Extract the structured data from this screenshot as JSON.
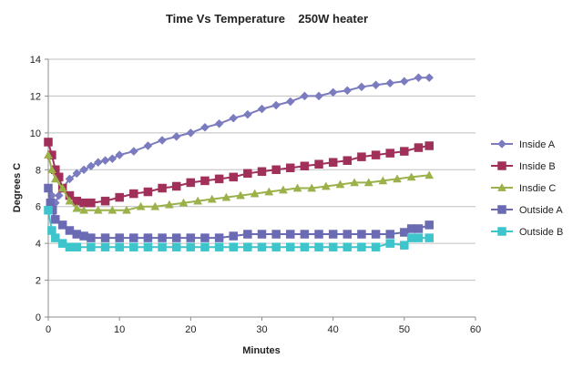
{
  "chart_data": {
    "type": "line",
    "title": "Time Vs Temperature    250W heater",
    "xlabel": "Minutes",
    "ylabel": "Degrees C",
    "xlim": [
      0,
      60
    ],
    "ylim": [
      0,
      14
    ],
    "xticks": [
      0,
      10,
      20,
      30,
      40,
      50,
      60
    ],
    "yticks": [
      0,
      2,
      4,
      6,
      8,
      10,
      12,
      14
    ],
    "grid": "horizontal",
    "legend_position": "right",
    "series": [
      {
        "name": "Inside A",
        "color": "#7b7bbf",
        "marker": "diamond",
        "points": [
          [
            0,
            7.0
          ],
          [
            0.5,
            6.6
          ],
          [
            1,
            6.2
          ],
          [
            1.5,
            6.6
          ],
          [
            2,
            7.0
          ],
          [
            3,
            7.5
          ],
          [
            4,
            7.8
          ],
          [
            5,
            8.0
          ],
          [
            6,
            8.2
          ],
          [
            7,
            8.4
          ],
          [
            8,
            8.5
          ],
          [
            9,
            8.6
          ],
          [
            10,
            8.8
          ],
          [
            12,
            9.0
          ],
          [
            14,
            9.3
          ],
          [
            16,
            9.6
          ],
          [
            18,
            9.8
          ],
          [
            20,
            10.0
          ],
          [
            22,
            10.3
          ],
          [
            24,
            10.5
          ],
          [
            26,
            10.8
          ],
          [
            28,
            11.0
          ],
          [
            30,
            11.3
          ],
          [
            32,
            11.5
          ],
          [
            34,
            11.7
          ],
          [
            36,
            12.0
          ],
          [
            38,
            12.0
          ],
          [
            40,
            12.2
          ],
          [
            42,
            12.3
          ],
          [
            44,
            12.5
          ],
          [
            46,
            12.6
          ],
          [
            48,
            12.7
          ],
          [
            50,
            12.8
          ],
          [
            52,
            13.0
          ],
          [
            53.5,
            13.0
          ]
        ]
      },
      {
        "name": "Inside B",
        "color": "#a0305a",
        "marker": "square",
        "points": [
          [
            0,
            9.5
          ],
          [
            0.5,
            8.8
          ],
          [
            1,
            8.0
          ],
          [
            1.5,
            7.6
          ],
          [
            2,
            7.0
          ],
          [
            3,
            6.6
          ],
          [
            4,
            6.3
          ],
          [
            5,
            6.2
          ],
          [
            6,
            6.2
          ],
          [
            8,
            6.3
          ],
          [
            10,
            6.5
          ],
          [
            12,
            6.7
          ],
          [
            14,
            6.8
          ],
          [
            16,
            7.0
          ],
          [
            18,
            7.1
          ],
          [
            20,
            7.3
          ],
          [
            22,
            7.4
          ],
          [
            24,
            7.5
          ],
          [
            26,
            7.6
          ],
          [
            28,
            7.8
          ],
          [
            30,
            7.9
          ],
          [
            32,
            8.0
          ],
          [
            34,
            8.1
          ],
          [
            36,
            8.2
          ],
          [
            38,
            8.3
          ],
          [
            40,
            8.4
          ],
          [
            42,
            8.5
          ],
          [
            44,
            8.7
          ],
          [
            46,
            8.8
          ],
          [
            48,
            8.9
          ],
          [
            50,
            9.0
          ],
          [
            52,
            9.2
          ],
          [
            53.5,
            9.3
          ]
        ]
      },
      {
        "name": "Insdie C",
        "color": "#9bb14a",
        "marker": "triangle",
        "points": [
          [
            0,
            8.8
          ],
          [
            0.5,
            8.0
          ],
          [
            1,
            7.5
          ],
          [
            2,
            7.0
          ],
          [
            3,
            6.3
          ],
          [
            4,
            5.9
          ],
          [
            5,
            5.8
          ],
          [
            7,
            5.8
          ],
          [
            9,
            5.8
          ],
          [
            11,
            5.8
          ],
          [
            13,
            6.0
          ],
          [
            15,
            6.0
          ],
          [
            17,
            6.1
          ],
          [
            19,
            6.2
          ],
          [
            21,
            6.3
          ],
          [
            23,
            6.4
          ],
          [
            25,
            6.5
          ],
          [
            27,
            6.6
          ],
          [
            29,
            6.7
          ],
          [
            31,
            6.8
          ],
          [
            33,
            6.9
          ],
          [
            35,
            7.0
          ],
          [
            37,
            7.0
          ],
          [
            39,
            7.1
          ],
          [
            41,
            7.2
          ],
          [
            43,
            7.3
          ],
          [
            45,
            7.3
          ],
          [
            47,
            7.4
          ],
          [
            49,
            7.5
          ],
          [
            51,
            7.6
          ],
          [
            53.5,
            7.7
          ]
        ]
      },
      {
        "name": "Outside A",
        "color": "#6b6bb4",
        "marker": "square",
        "points": [
          [
            0,
            7.0
          ],
          [
            0.3,
            6.2
          ],
          [
            0.6,
            5.8
          ],
          [
            1,
            5.3
          ],
          [
            2,
            5.0
          ],
          [
            3,
            4.7
          ],
          [
            4,
            4.5
          ],
          [
            5,
            4.4
          ],
          [
            6,
            4.3
          ],
          [
            8,
            4.3
          ],
          [
            10,
            4.3
          ],
          [
            12,
            4.3
          ],
          [
            14,
            4.3
          ],
          [
            16,
            4.3
          ],
          [
            18,
            4.3
          ],
          [
            20,
            4.3
          ],
          [
            22,
            4.3
          ],
          [
            24,
            4.3
          ],
          [
            26,
            4.4
          ],
          [
            28,
            4.5
          ],
          [
            30,
            4.5
          ],
          [
            32,
            4.5
          ],
          [
            34,
            4.5
          ],
          [
            36,
            4.5
          ],
          [
            38,
            4.5
          ],
          [
            40,
            4.5
          ],
          [
            42,
            4.5
          ],
          [
            44,
            4.5
          ],
          [
            46,
            4.5
          ],
          [
            48,
            4.5
          ],
          [
            50,
            4.6
          ],
          [
            51,
            4.8
          ],
          [
            52,
            4.8
          ],
          [
            53.5,
            5.0
          ]
        ]
      },
      {
        "name": "Outside B",
        "color": "#3ec4cb",
        "marker": "square",
        "points": [
          [
            0,
            5.8
          ],
          [
            0.5,
            4.7
          ],
          [
            1,
            4.3
          ],
          [
            2,
            4.0
          ],
          [
            3,
            3.8
          ],
          [
            4,
            3.8
          ],
          [
            6,
            3.8
          ],
          [
            8,
            3.8
          ],
          [
            10,
            3.8
          ],
          [
            12,
            3.8
          ],
          [
            14,
            3.8
          ],
          [
            16,
            3.8
          ],
          [
            18,
            3.8
          ],
          [
            20,
            3.8
          ],
          [
            22,
            3.8
          ],
          [
            24,
            3.8
          ],
          [
            26,
            3.8
          ],
          [
            28,
            3.8
          ],
          [
            30,
            3.8
          ],
          [
            32,
            3.8
          ],
          [
            34,
            3.8
          ],
          [
            36,
            3.8
          ],
          [
            38,
            3.8
          ],
          [
            40,
            3.8
          ],
          [
            42,
            3.8
          ],
          [
            44,
            3.8
          ],
          [
            46,
            3.8
          ],
          [
            48,
            4.0
          ],
          [
            50,
            3.9
          ],
          [
            51,
            4.3
          ],
          [
            52,
            4.3
          ],
          [
            53.5,
            4.3
          ]
        ]
      }
    ]
  }
}
